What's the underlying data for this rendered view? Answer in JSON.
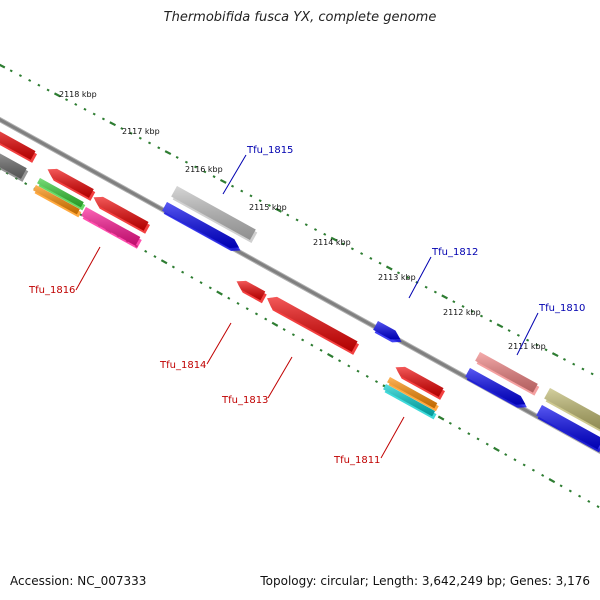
{
  "title": "Thermobifida fusca YX, complete genome",
  "footer": {
    "accession": "Accession: NC_007333",
    "summary": "Topology: circular; Length: 3,642,249 bp; Genes: 3,176"
  },
  "colors": {
    "backbone": "#808080",
    "ticks": "#2e7d32",
    "label_forward": "#0000b0",
    "label_reverse": "#c00000"
  },
  "kbp_marks": [
    "2118 kbp",
    "2117 kbp",
    "2116 kbp",
    "2115 kbp",
    "2114 kbp",
    "2113 kbp",
    "2112 kbp",
    "2111 kbp"
  ],
  "gene_labels": [
    {
      "name": "Tfu_1815",
      "strand": "forward"
    },
    {
      "name": "Tfu_1812",
      "strand": "forward"
    },
    {
      "name": "Tfu_1810",
      "strand": "forward"
    },
    {
      "name": "Tfu_1816",
      "strand": "reverse"
    },
    {
      "name": "Tfu_1814",
      "strand": "reverse"
    },
    {
      "name": "Tfu_1813",
      "strand": "reverse"
    },
    {
      "name": "Tfu_1811",
      "strand": "reverse"
    }
  ],
  "features": [
    {
      "name": "feature-fwd-gray",
      "color": "#c0c0c0"
    },
    {
      "name": "feature-fwd-blue-1815",
      "color": "#0000ee"
    },
    {
      "name": "feature-fwd-blue-1812",
      "color": "#0000ee"
    },
    {
      "name": "feature-fwd-pink",
      "color": "#f08080"
    },
    {
      "name": "feature-fwd-blue-1810",
      "color": "#0000ee"
    },
    {
      "name": "feature-fwd-olive",
      "color": "#bdb76b"
    },
    {
      "name": "feature-fwd-blue-edge",
      "color": "#0000ee"
    },
    {
      "name": "feature-rev-darkgray",
      "color": "#707070"
    },
    {
      "name": "feature-rev-red-edge",
      "color": "#ee0000"
    },
    {
      "name": "feature-rev-red-a",
      "color": "#ee0000"
    },
    {
      "name": "feature-rev-green",
      "color": "#33cc33"
    },
    {
      "name": "feature-rev-orange-a",
      "color": "#ff8c00"
    },
    {
      "name": "feature-rev-red-b",
      "color": "#ee0000"
    },
    {
      "name": "feature-rev-magenta",
      "color": "#ff1493"
    },
    {
      "name": "feature-rev-red-small",
      "color": "#ee0000"
    },
    {
      "name": "feature-rev-red-long",
      "color": "#ee0000"
    },
    {
      "name": "feature-rev-red-1811",
      "color": "#ee0000"
    },
    {
      "name": "feature-rev-orange-1811",
      "color": "#ff8c00"
    },
    {
      "name": "feature-rev-cyan-1811",
      "color": "#00cccc"
    }
  ]
}
